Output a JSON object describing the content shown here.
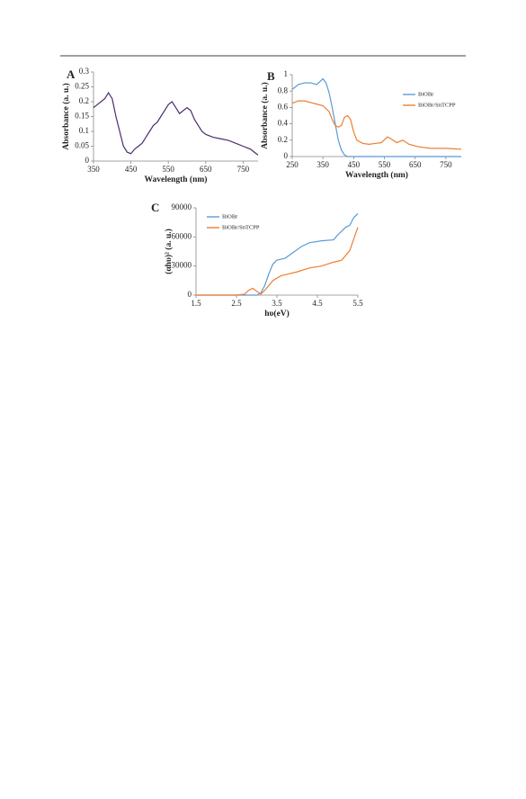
{
  "chart_data": [
    {
      "type": "line",
      "panel_label": "A",
      "x_label": "Wavelength (nm)",
      "y_label": "Absorbance  (a. u.)",
      "xlim": [
        350,
        790
      ],
      "ylim": [
        0,
        0.3
      ],
      "xticks": [
        350,
        450,
        550,
        650,
        750
      ],
      "yticks": [
        0,
        0.05,
        0.1,
        0.15,
        0.2,
        0.25,
        0.3
      ],
      "series": [
        {
          "color": "#4b2c6f",
          "x": [
            350,
            360,
            370,
            380,
            390,
            400,
            410,
            420,
            430,
            440,
            450,
            460,
            470,
            480,
            490,
            500,
            510,
            520,
            530,
            540,
            550,
            560,
            570,
            580,
            590,
            600,
            610,
            620,
            630,
            640,
            650,
            670,
            690,
            710,
            730,
            750,
            760,
            770,
            780,
            790
          ],
          "values": [
            0.18,
            0.19,
            0.2,
            0.21,
            0.23,
            0.21,
            0.15,
            0.1,
            0.05,
            0.03,
            0.025,
            0.04,
            0.05,
            0.06,
            0.08,
            0.1,
            0.12,
            0.13,
            0.15,
            0.17,
            0.19,
            0.2,
            0.18,
            0.16,
            0.17,
            0.18,
            0.17,
            0.14,
            0.12,
            0.1,
            0.09,
            0.08,
            0.075,
            0.07,
            0.06,
            0.05,
            0.045,
            0.04,
            0.03,
            0.02
          ]
        }
      ]
    },
    {
      "type": "line",
      "panel_label": "B",
      "x_label": "Wavelength (nm)",
      "y_label": "Absorbance  (a. u.)",
      "xlim": [
        250,
        800
      ],
      "ylim": [
        0,
        1
      ],
      "xticks": [
        250,
        350,
        450,
        550,
        650,
        750
      ],
      "yticks": [
        0,
        0.2,
        0.4,
        0.6,
        0.8,
        1
      ],
      "legend": "right",
      "series": [
        {
          "name": "BiOBr",
          "color": "#5b9bd5",
          "x": [
            250,
            270,
            290,
            310,
            330,
            350,
            360,
            370,
            380,
            390,
            400,
            410,
            420,
            430,
            500,
            600,
            700,
            800
          ],
          "values": [
            0.82,
            0.88,
            0.9,
            0.9,
            0.88,
            0.95,
            0.9,
            0.78,
            0.6,
            0.4,
            0.2,
            0.08,
            0.02,
            0,
            0,
            0,
            0,
            0
          ]
        },
        {
          "name": "BiOBr/SnTCPP",
          "color": "#ed7d31",
          "x": [
            250,
            270,
            290,
            310,
            330,
            350,
            370,
            380,
            390,
            400,
            410,
            420,
            430,
            440,
            450,
            460,
            480,
            500,
            520,
            540,
            560,
            570,
            590,
            610,
            630,
            660,
            700,
            750,
            800
          ],
          "values": [
            0.65,
            0.68,
            0.68,
            0.66,
            0.64,
            0.62,
            0.55,
            0.45,
            0.38,
            0.36,
            0.38,
            0.48,
            0.5,
            0.45,
            0.3,
            0.2,
            0.16,
            0.15,
            0.16,
            0.17,
            0.24,
            0.22,
            0.17,
            0.2,
            0.15,
            0.12,
            0.1,
            0.1,
            0.09
          ]
        }
      ]
    },
    {
      "type": "line",
      "panel_label": "C",
      "x_label": "hυ(eV)",
      "y_label": "(αhυ)² (a. u.)",
      "xlim": [
        1.5,
        5.5
      ],
      "ylim": [
        0,
        90000
      ],
      "xticks": [
        1.5,
        2.5,
        3.5,
        4.5,
        5.5
      ],
      "yticks": [
        0,
        30000,
        60000,
        90000
      ],
      "legend": "upper left",
      "series": [
        {
          "name": "BiOBr",
          "color": "#5b9bd5",
          "x": [
            1.5,
            2.5,
            3.0,
            3.1,
            3.2,
            3.3,
            3.4,
            3.5,
            3.7,
            3.9,
            4.1,
            4.3,
            4.6,
            4.9,
            5.0,
            5.2,
            5.3,
            5.4,
            5.5
          ],
          "values": [
            0,
            0,
            0,
            2000,
            10000,
            22000,
            32000,
            36000,
            38000,
            44000,
            50000,
            54000,
            56000,
            57000,
            62000,
            70000,
            72000,
            80000,
            84000
          ]
        },
        {
          "name": "BiOBr/SnTCPP",
          "color": "#ed7d31",
          "x": [
            1.5,
            2.5,
            2.7,
            2.8,
            2.9,
            3.0,
            3.1,
            3.2,
            3.4,
            3.6,
            3.8,
            4.0,
            4.3,
            4.6,
            4.9,
            5.1,
            5.3,
            5.4,
            5.5
          ],
          "values": [
            0,
            0,
            1000,
            5000,
            7000,
            4000,
            1000,
            5000,
            15000,
            20000,
            22000,
            24000,
            28000,
            30000,
            34000,
            36000,
            46000,
            58000,
            70000
          ]
        }
      ]
    }
  ]
}
